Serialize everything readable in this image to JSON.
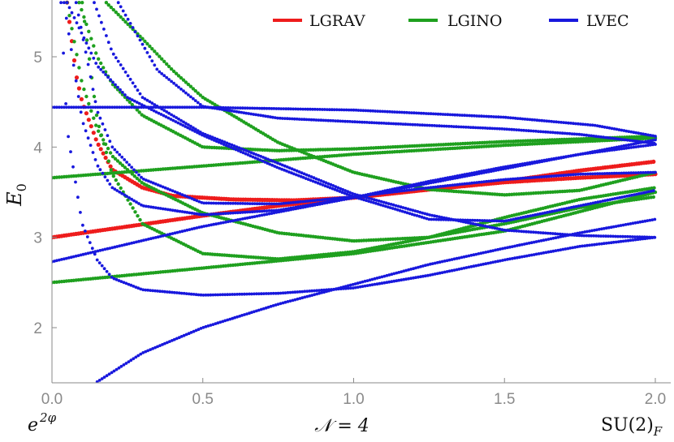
{
  "chart_data": {
    "type": "scatter",
    "xlabel": "",
    "ylabel": "E",
    "ylabel_sub": "0",
    "xlim": [
      0,
      2
    ],
    "ylim": [
      1.4,
      5.6
    ],
    "x_ticks": [
      "0.0",
      "0.5",
      "1.0",
      "1.5",
      "2.0"
    ],
    "y_ticks": [
      "2",
      "3",
      "4",
      "5"
    ],
    "grid": false,
    "legend_position": "top-right",
    "corner_left": "e",
    "corner_left_sup": "2φ",
    "center_label": "𝒩 = 4",
    "corner_right": "SU(2)",
    "corner_right_sub": "F",
    "series": [
      {
        "name": "LGRAV",
        "color": "#ee1c1c",
        "curves": [
          {
            "x": [
              0,
              0.25,
              0.5,
              0.75,
              1.0,
              1.25,
              1.5,
              1.75,
              2.0
            ],
            "y": [
              3.0,
              3.12,
              3.24,
              3.35,
              3.44,
              3.53,
              3.61,
              3.66,
              3.7
            ]
          },
          {
            "x": [
              0.05,
              0.08,
              0.1,
              0.15,
              0.2,
              0.3,
              0.4,
              0.6,
              0.8,
              1.0,
              1.25,
              1.5,
              1.75,
              2.0
            ],
            "y": [
              5.6,
              4.8,
              4.5,
              4.05,
              3.75,
              3.55,
              3.46,
              3.42,
              3.41,
              3.44,
              3.53,
              3.62,
              3.74,
              3.84
            ]
          }
        ]
      },
      {
        "name": "LGINO",
        "color": "#1fa01f",
        "curves": [
          {
            "x": [
              0,
              0.5,
              1.0,
              1.5,
              2.0
            ],
            "y": [
              2.5,
              2.66,
              2.82,
              3.07,
              3.5
            ]
          },
          {
            "x": [
              0,
              0.5,
              1.0,
              1.5,
              2.0
            ],
            "y": [
              3.66,
              3.79,
              3.92,
              4.02,
              4.1
            ]
          },
          {
            "x": [
              0.1,
              0.15,
              0.2,
              0.3,
              0.5,
              0.75,
              1.0,
              1.25,
              1.5,
              1.75,
              2.0
            ],
            "y": [
              5.6,
              4.3,
              3.7,
              3.15,
              2.82,
              2.76,
              2.84,
              3.0,
              3.22,
              3.42,
              3.55
            ]
          },
          {
            "x": [
              0.05,
              0.1,
              0.15,
              0.2,
              0.3,
              0.5,
              0.75,
              1.0,
              1.25,
              1.5,
              1.75,
              2.0
            ],
            "y": [
              5.6,
              4.7,
              4.2,
              3.9,
              3.6,
              3.27,
              3.05,
              2.96,
              3.0,
              3.15,
              3.33,
              3.45
            ]
          },
          {
            "x": [
              0.09,
              0.15,
              0.2,
              0.3,
              0.5,
              0.75,
              1.0,
              1.25,
              1.5,
              1.75,
              2.0
            ],
            "y": [
              5.6,
              5.0,
              4.7,
              4.35,
              4.0,
              3.96,
              3.98,
              4.02,
              4.06,
              4.09,
              4.12
            ]
          },
          {
            "x": [
              0.18,
              0.3,
              0.4,
              0.5,
              0.75,
              1.0,
              1.25,
              1.5,
              1.75,
              2.0
            ],
            "y": [
              5.6,
              5.2,
              4.85,
              4.55,
              4.05,
              3.72,
              3.53,
              3.47,
              3.52,
              3.72
            ]
          }
        ]
      },
      {
        "name": "LVEC",
        "color": "#1818dd",
        "curves": [
          {
            "x": [
              0,
              0.5,
              1.0,
              1.5,
              1.8,
              2.0
            ],
            "y": [
              4.44,
              4.44,
              4.41,
              4.33,
              4.24,
              4.12
            ]
          },
          {
            "x": [
              0.15,
              0.3,
              0.5,
              0.75,
              1.0,
              1.25,
              1.5,
              1.75,
              2.0
            ],
            "y": [
              1.4,
              1.72,
              2.0,
              2.26,
              2.48,
              2.7,
              2.88,
              3.05,
              3.2
            ]
          },
          {
            "x": [
              0.03,
              0.05,
              0.1,
              0.15,
              0.2,
              0.3,
              0.5,
              0.75,
              1.0,
              1.25,
              1.5,
              1.75,
              2.0
            ],
            "y": [
              5.6,
              4.2,
              3.15,
              2.75,
              2.55,
              2.42,
              2.36,
              2.38,
              2.44,
              2.58,
              2.75,
              2.9,
              3.0
            ]
          },
          {
            "x": [
              0,
              0.5,
              1.0,
              1.5,
              2.0
            ],
            "y": [
              2.73,
              3.12,
              3.44,
              3.76,
              4.08
            ]
          },
          {
            "x": [
              0.04,
              0.1,
              0.15,
              0.2,
              0.3,
              0.5,
              0.75,
              1.0,
              1.25,
              1.5,
              1.75,
              2.0
            ],
            "y": [
              5.6,
              4.3,
              3.8,
              3.55,
              3.35,
              3.25,
              3.3,
              3.44,
              3.62,
              3.78,
              3.92,
              4.03
            ]
          },
          {
            "x": [
              0.08,
              0.15,
              0.2,
              0.3,
              0.5,
              0.75,
              1.0,
              1.25,
              1.5,
              1.75,
              2.0
            ],
            "y": [
              5.6,
              4.4,
              4.0,
              3.65,
              3.38,
              3.37,
              3.45,
              3.55,
              3.64,
              3.7,
              3.72
            ]
          },
          {
            "x": [
              0.14,
              0.2,
              0.3,
              0.5,
              0.75,
              1.0,
              1.25,
              1.5,
              1.75,
              2.0
            ],
            "y": [
              5.6,
              5.05,
              4.55,
              4.15,
              3.82,
              3.48,
              3.25,
              3.08,
              3.02,
              3.0
            ]
          },
          {
            "x": [
              0.22,
              0.35,
              0.5,
              0.75,
              1.0,
              1.25,
              1.5,
              1.75,
              2.0
            ],
            "y": [
              5.6,
              4.85,
              4.45,
              4.32,
              4.28,
              4.24,
              4.2,
              4.14,
              4.04
            ]
          },
          {
            "x": [
              0.05,
              0.15,
              0.25,
              0.5,
              0.75,
              1.0,
              1.25,
              1.5,
              1.75,
              2.0
            ],
            "y": [
              5.6,
              4.9,
              4.55,
              4.13,
              3.77,
              3.45,
              3.2,
              3.18,
              3.35,
              3.52
            ]
          }
        ]
      }
    ]
  }
}
